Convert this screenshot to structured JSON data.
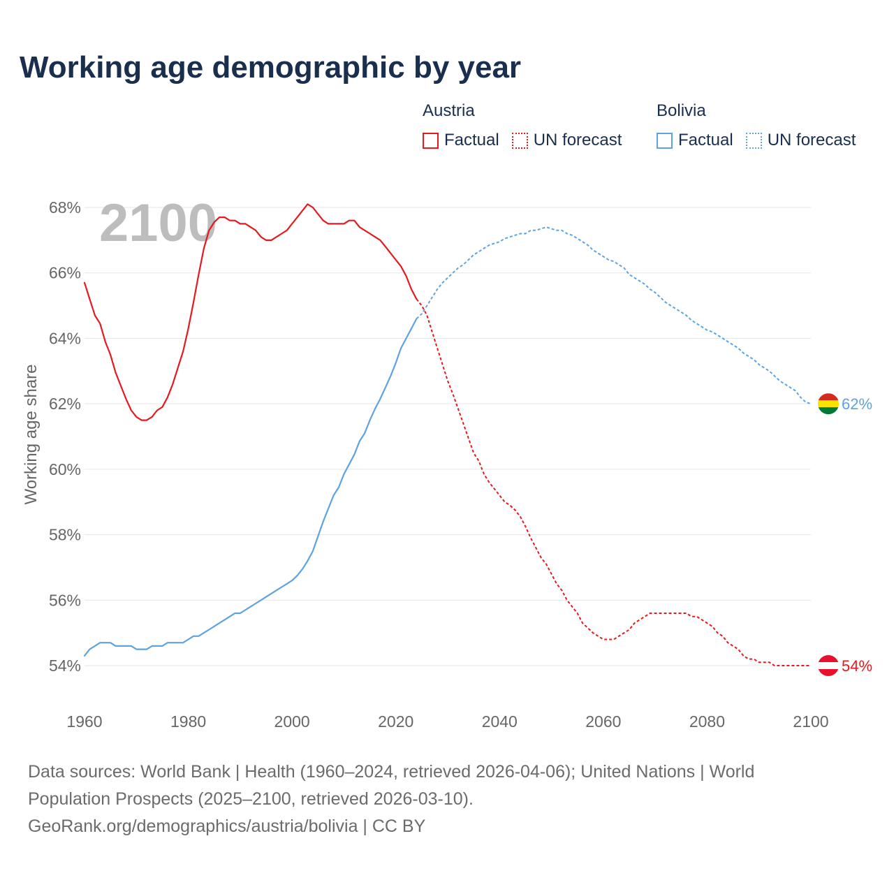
{
  "chart_data": {
    "type": "line",
    "title": "Working age demographic by year",
    "ylabel": "Working age share",
    "xlim": [
      1960,
      2100
    ],
    "ylim": [
      54,
      68
    ],
    "x_ticks": [
      1960,
      1980,
      2000,
      2020,
      2040,
      2060,
      2080,
      2100
    ],
    "x_tick_labels": [
      "1960",
      "1980",
      "2000",
      "2020",
      "2040",
      "2060",
      "2080",
      "2100"
    ],
    "y_ticks": [
      54,
      56,
      58,
      60,
      62,
      64,
      66,
      68
    ],
    "y_tick_labels": [
      "54%",
      "56%",
      "58%",
      "60%",
      "62%",
      "64%",
      "66%",
      "68%"
    ],
    "grid": true,
    "year_label": "2100",
    "series": [
      {
        "name": "Austria",
        "color": "#e5191e",
        "flag_colors": [
          "#e8112d",
          "#ffffff",
          "#e8112d"
        ],
        "end_label": "54%",
        "factual": {
          "label": "Factual",
          "start_year": 1960,
          "values": [
            65.7,
            65.2,
            64.7,
            64.45,
            63.9,
            63.5,
            62.95,
            62.55,
            62.15,
            61.8,
            61.6,
            61.5,
            61.5,
            61.6,
            61.8,
            61.9,
            62.2,
            62.6,
            63.1,
            63.6,
            64.3,
            65.1,
            65.95,
            66.75,
            67.3,
            67.55,
            67.7,
            67.7,
            67.6,
            67.6,
            67.5,
            67.5,
            67.4,
            67.3,
            67.1,
            67.0,
            67.0,
            67.1,
            67.2,
            67.3,
            67.5,
            67.7,
            67.9,
            68.1,
            68.0,
            67.8,
            67.6,
            67.5,
            67.5,
            67.5,
            67.5,
            67.6,
            67.6,
            67.4,
            67.3,
            67.2,
            67.1,
            67.0,
            66.8,
            66.6,
            66.4,
            66.2,
            65.9,
            65.5,
            65.2
          ]
        },
        "forecast": {
          "label": "UN forecast",
          "start_year": 2025,
          "values": [
            65.0,
            64.7,
            64.2,
            63.7,
            63.2,
            62.7,
            62.3,
            61.85,
            61.4,
            60.95,
            60.5,
            60.25,
            59.85,
            59.6,
            59.4,
            59.2,
            59.0,
            58.9,
            58.75,
            58.55,
            58.25,
            57.9,
            57.6,
            57.3,
            57.1,
            56.8,
            56.5,
            56.3,
            56.0,
            55.8,
            55.6,
            55.3,
            55.15,
            55.0,
            54.9,
            54.8,
            54.8,
            54.8,
            54.9,
            55.0,
            55.1,
            55.3,
            55.4,
            55.5,
            55.6,
            55.6,
            55.6,
            55.6,
            55.6,
            55.6,
            55.6,
            55.6,
            55.5,
            55.5,
            55.4,
            55.3,
            55.2,
            55.0,
            54.9,
            54.7,
            54.6,
            54.5,
            54.3,
            54.2,
            54.2,
            54.1,
            54.1,
            54.1,
            54.0,
            54.0,
            54.0,
            54.0,
            54.0,
            54.0,
            54.0,
            54.0
          ]
        }
      },
      {
        "name": "Bolivia",
        "color": "#5da3e1",
        "flag_colors": [
          "#d52b1e",
          "#f9e300",
          "#007934"
        ],
        "end_label": "62%",
        "factual": {
          "label": "Factual",
          "start_year": 1960,
          "values": [
            54.3,
            54.5,
            54.6,
            54.7,
            54.7,
            54.7,
            54.6,
            54.6,
            54.6,
            54.6,
            54.5,
            54.5,
            54.5,
            54.6,
            54.6,
            54.6,
            54.7,
            54.7,
            54.7,
            54.7,
            54.8,
            54.9,
            54.9,
            55.0,
            55.1,
            55.2,
            55.3,
            55.4,
            55.5,
            55.6,
            55.6,
            55.7,
            55.8,
            55.9,
            56.0,
            56.1,
            56.2,
            56.3,
            56.4,
            56.5,
            56.6,
            56.75,
            56.95,
            57.2,
            57.5,
            57.95,
            58.4,
            58.8,
            59.2,
            59.45,
            59.85,
            60.15,
            60.45,
            60.85,
            61.1,
            61.5,
            61.85,
            62.15,
            62.5,
            62.85,
            63.25,
            63.7,
            64.0,
            64.3,
            64.6
          ]
        },
        "forecast": {
          "label": "UN forecast",
          "start_year": 2025,
          "values": [
            64.75,
            65.0,
            65.25,
            65.5,
            65.7,
            65.85,
            66.0,
            66.15,
            66.25,
            66.4,
            66.55,
            66.65,
            66.75,
            66.85,
            66.9,
            66.95,
            67.05,
            67.1,
            67.15,
            67.2,
            67.2,
            67.3,
            67.3,
            67.35,
            67.4,
            67.35,
            67.3,
            67.3,
            67.2,
            67.15,
            67.05,
            66.95,
            66.85,
            66.7,
            66.6,
            66.5,
            66.4,
            66.35,
            66.25,
            66.15,
            65.95,
            65.85,
            65.75,
            65.65,
            65.5,
            65.4,
            65.25,
            65.1,
            65.0,
            64.9,
            64.8,
            64.7,
            64.55,
            64.45,
            64.35,
            64.25,
            64.2,
            64.1,
            64.0,
            63.9,
            63.8,
            63.7,
            63.55,
            63.45,
            63.35,
            63.2,
            63.1,
            63.0,
            62.85,
            62.7,
            62.6,
            62.5,
            62.4,
            62.2,
            62.05,
            62.0
          ]
        }
      }
    ]
  },
  "footer": {
    "sources": "Data sources: World Bank | Health (1960–2024, retrieved 2026-04-06); United Nations | World Population Prospects (2025–2100, retrieved 2026-03-10).",
    "attribution": "GeoRank.org/demographics/austria/bolivia | CC BY"
  }
}
